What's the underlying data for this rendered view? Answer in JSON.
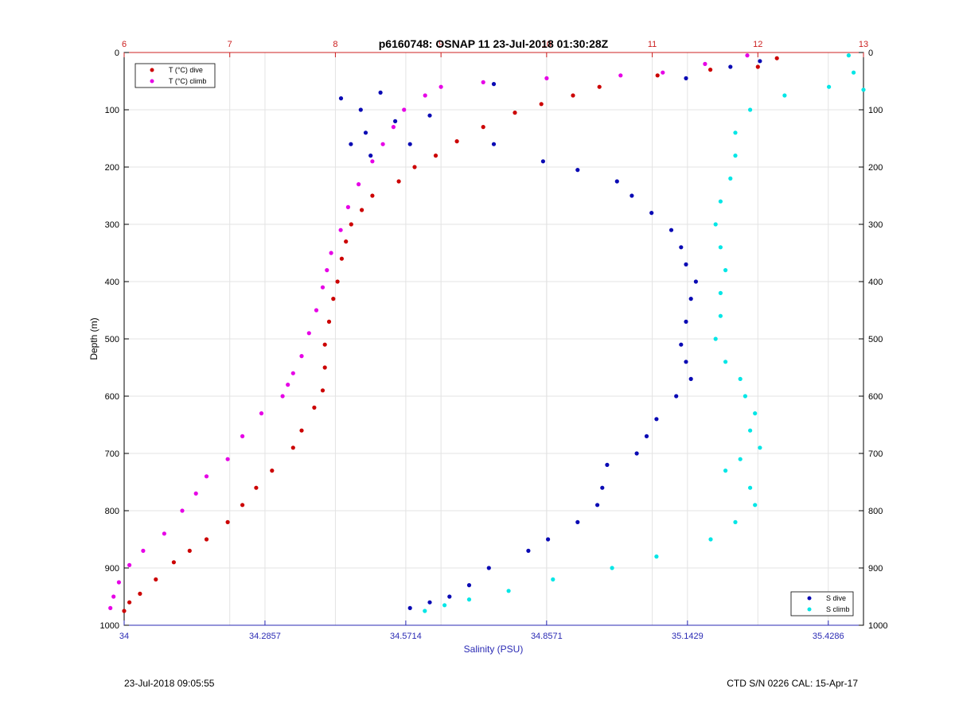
{
  "footer": {
    "left": "23-Jul-2018 09:05:55",
    "right": "CTD S/N 0226  CAL: 15-Apr-17"
  },
  "chart_data": {
    "type": "scatter",
    "title": "p6160748: OSNAP 11 23-Jul-2018 01:30:28Z",
    "ylabel": "Depth (m)",
    "xlabel_bottom": "Salinity (PSU)",
    "ylim": [
      0,
      1000
    ],
    "y_reversed": true,
    "y_ticks": [
      "0",
      "100",
      "200",
      "300",
      "400",
      "500",
      "600",
      "700",
      "800",
      "900",
      "1000"
    ],
    "x_top": {
      "range": [
        6,
        13
      ],
      "ticks": [
        "6",
        "7",
        "8",
        "9",
        "10",
        "11",
        "12",
        "13"
      ],
      "color": "#cc2020"
    },
    "x_bottom": {
      "range": [
        34,
        35.5
      ],
      "ticks": [
        "34",
        "34.2857",
        "34.5714",
        "34.8571",
        "35.1429",
        "35.4286"
      ],
      "color": "#2a2ab4"
    },
    "grid": true,
    "legends": [
      {
        "position": "top-left",
        "items": [
          {
            "label": "T (°C) dive",
            "color": "#cc0000"
          },
          {
            "label": "T (°C) climb",
            "color": "#e600e6"
          }
        ]
      },
      {
        "position": "bottom-right",
        "items": [
          {
            "label": "S dive",
            "color": "#0a0ab4"
          },
          {
            "label": "S climb",
            "color": "#00e6e6"
          }
        ]
      }
    ],
    "series": [
      {
        "name": "T (°C) dive",
        "axis": "top",
        "color": "#cc0000",
        "points": [
          [
            12.18,
            10
          ],
          [
            12.0,
            25
          ],
          [
            11.55,
            30
          ],
          [
            11.05,
            40
          ],
          [
            10.5,
            60
          ],
          [
            10.25,
            75
          ],
          [
            9.95,
            90
          ],
          [
            9.7,
            105
          ],
          [
            9.4,
            130
          ],
          [
            9.15,
            155
          ],
          [
            8.95,
            180
          ],
          [
            8.75,
            200
          ],
          [
            8.6,
            225
          ],
          [
            8.35,
            250
          ],
          [
            8.25,
            275
          ],
          [
            8.15,
            300
          ],
          [
            8.1,
            330
          ],
          [
            8.06,
            360
          ],
          [
            8.02,
            400
          ],
          [
            7.98,
            430
          ],
          [
            7.94,
            470
          ],
          [
            7.9,
            510
          ],
          [
            7.9,
            550
          ],
          [
            7.88,
            590
          ],
          [
            7.8,
            620
          ],
          [
            7.68,
            660
          ],
          [
            7.6,
            690
          ],
          [
            7.4,
            730
          ],
          [
            7.25,
            760
          ],
          [
            7.12,
            790
          ],
          [
            6.98,
            820
          ],
          [
            6.78,
            850
          ],
          [
            6.62,
            870
          ],
          [
            6.47,
            890
          ],
          [
            6.3,
            920
          ],
          [
            6.15,
            945
          ],
          [
            6.05,
            960
          ],
          [
            6.0,
            975
          ]
        ]
      },
      {
        "name": "T (°C) climb",
        "axis": "top",
        "color": "#e600e6",
        "points": [
          [
            11.9,
            5
          ],
          [
            11.5,
            20
          ],
          [
            11.1,
            35
          ],
          [
            10.7,
            40
          ],
          [
            10.0,
            45
          ],
          [
            9.4,
            52
          ],
          [
            9.0,
            60
          ],
          [
            8.85,
            75
          ],
          [
            8.65,
            100
          ],
          [
            8.55,
            130
          ],
          [
            8.45,
            160
          ],
          [
            8.35,
            190
          ],
          [
            8.22,
            230
          ],
          [
            8.12,
            270
          ],
          [
            8.05,
            310
          ],
          [
            7.96,
            350
          ],
          [
            7.92,
            380
          ],
          [
            7.88,
            410
          ],
          [
            7.82,
            450
          ],
          [
            7.75,
            490
          ],
          [
            7.68,
            530
          ],
          [
            7.6,
            560
          ],
          [
            7.55,
            580
          ],
          [
            7.5,
            600
          ],
          [
            7.3,
            630
          ],
          [
            7.12,
            670
          ],
          [
            6.98,
            710
          ],
          [
            6.78,
            740
          ],
          [
            6.68,
            770
          ],
          [
            6.55,
            800
          ],
          [
            6.38,
            840
          ],
          [
            6.18,
            870
          ],
          [
            6.05,
            895
          ],
          [
            5.95,
            925
          ],
          [
            5.9,
            950
          ],
          [
            5.87,
            970
          ]
        ]
      },
      {
        "name": "S dive",
        "axis": "bottom",
        "color": "#0a0ab4",
        "points": [
          [
            35.29,
            15
          ],
          [
            35.23,
            25
          ],
          [
            35.14,
            45
          ],
          [
            34.75,
            55
          ],
          [
            34.52,
            70
          ],
          [
            34.44,
            80
          ],
          [
            34.48,
            100
          ],
          [
            34.55,
            120
          ],
          [
            34.49,
            140
          ],
          [
            34.46,
            160
          ],
          [
            34.5,
            180
          ],
          [
            34.58,
            160
          ],
          [
            34.62,
            110
          ],
          [
            34.75,
            160
          ],
          [
            34.85,
            190
          ],
          [
            34.92,
            205
          ],
          [
            35.0,
            225
          ],
          [
            35.03,
            250
          ],
          [
            35.07,
            280
          ],
          [
            35.11,
            310
          ],
          [
            35.13,
            340
          ],
          [
            35.14,
            370
          ],
          [
            35.16,
            400
          ],
          [
            35.15,
            430
          ],
          [
            35.14,
            470
          ],
          [
            35.13,
            510
          ],
          [
            35.14,
            540
          ],
          [
            35.15,
            570
          ],
          [
            35.12,
            600
          ],
          [
            35.08,
            640
          ],
          [
            35.06,
            670
          ],
          [
            35.04,
            700
          ],
          [
            34.98,
            720
          ],
          [
            34.97,
            760
          ],
          [
            34.96,
            790
          ],
          [
            34.92,
            820
          ],
          [
            34.86,
            850
          ],
          [
            34.82,
            870
          ],
          [
            34.74,
            900
          ],
          [
            34.7,
            930
          ],
          [
            34.66,
            950
          ],
          [
            34.62,
            960
          ],
          [
            34.58,
            970
          ]
        ]
      },
      {
        "name": "S climb",
        "axis": "bottom",
        "color": "#00e6e6",
        "points": [
          [
            35.47,
            5
          ],
          [
            35.48,
            35
          ],
          [
            35.5,
            65
          ],
          [
            35.43,
            60
          ],
          [
            35.34,
            75
          ],
          [
            35.27,
            100
          ],
          [
            35.24,
            140
          ],
          [
            35.24,
            180
          ],
          [
            35.23,
            220
          ],
          [
            35.21,
            260
          ],
          [
            35.2,
            300
          ],
          [
            35.21,
            340
          ],
          [
            35.22,
            380
          ],
          [
            35.21,
            420
          ],
          [
            35.21,
            460
          ],
          [
            35.2,
            500
          ],
          [
            35.22,
            540
          ],
          [
            35.25,
            570
          ],
          [
            35.26,
            600
          ],
          [
            35.28,
            630
          ],
          [
            35.27,
            660
          ],
          [
            35.29,
            690
          ],
          [
            35.25,
            710
          ],
          [
            35.22,
            730
          ],
          [
            35.27,
            760
          ],
          [
            35.28,
            790
          ],
          [
            35.24,
            820
          ],
          [
            35.19,
            850
          ],
          [
            35.08,
            880
          ],
          [
            34.99,
            900
          ],
          [
            34.87,
            920
          ],
          [
            34.78,
            940
          ],
          [
            34.7,
            955
          ],
          [
            34.65,
            965
          ],
          [
            34.61,
            975
          ]
        ]
      }
    ]
  }
}
